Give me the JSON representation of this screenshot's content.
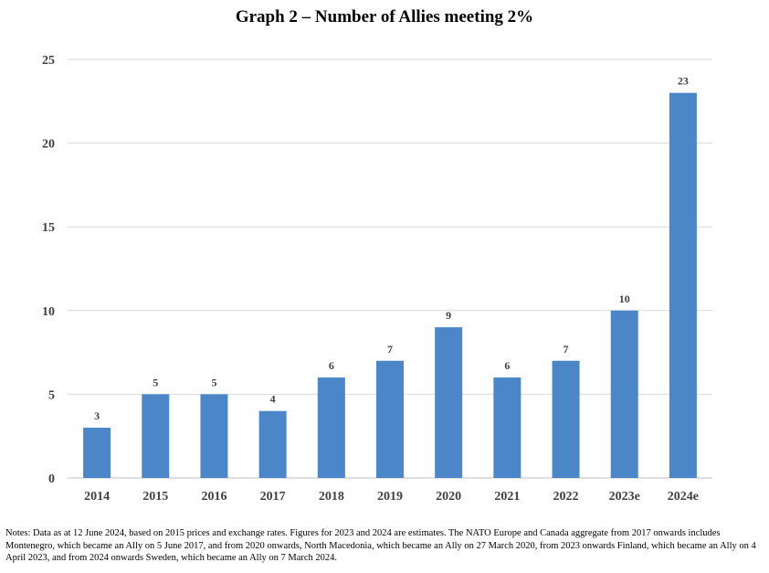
{
  "chart_data": {
    "type": "bar",
    "title": "Graph 2 – Number of Allies meeting 2%",
    "categories": [
      "2014",
      "2015",
      "2016",
      "2017",
      "2018",
      "2019",
      "2020",
      "2021",
      "2022",
      "2023e",
      "2024e"
    ],
    "values": [
      3,
      5,
      5,
      4,
      6,
      7,
      9,
      6,
      7,
      10,
      23
    ],
    "data_labels": [
      "3",
      "5",
      "5",
      "4",
      "6",
      "7",
      "9",
      "6",
      "7",
      "10",
      "23"
    ],
    "yticks": [
      "0",
      "5",
      "10",
      "15",
      "20",
      "25"
    ],
    "ylim": [
      0,
      25
    ],
    "grid": true,
    "xlabel": "",
    "ylabel": "",
    "bar_color": "#4a86c8"
  },
  "notes": "Notes: Data as at 12 June 2024, based on 2015 prices and exchange rates. Figures for 2023 and 2024 are estimates. The NATO Europe and Canada aggregate from 2017 onwards includes Montenegro, which became an Ally on 5 June 2017, and from 2020 onwards, North Macedonia, which became an Ally on 27 March 2020, from 2023 onwards Finland, which became an Ally on 4 April 2023, and from 2024 onwards Sweden, which became an Ally on 7 March 2024."
}
